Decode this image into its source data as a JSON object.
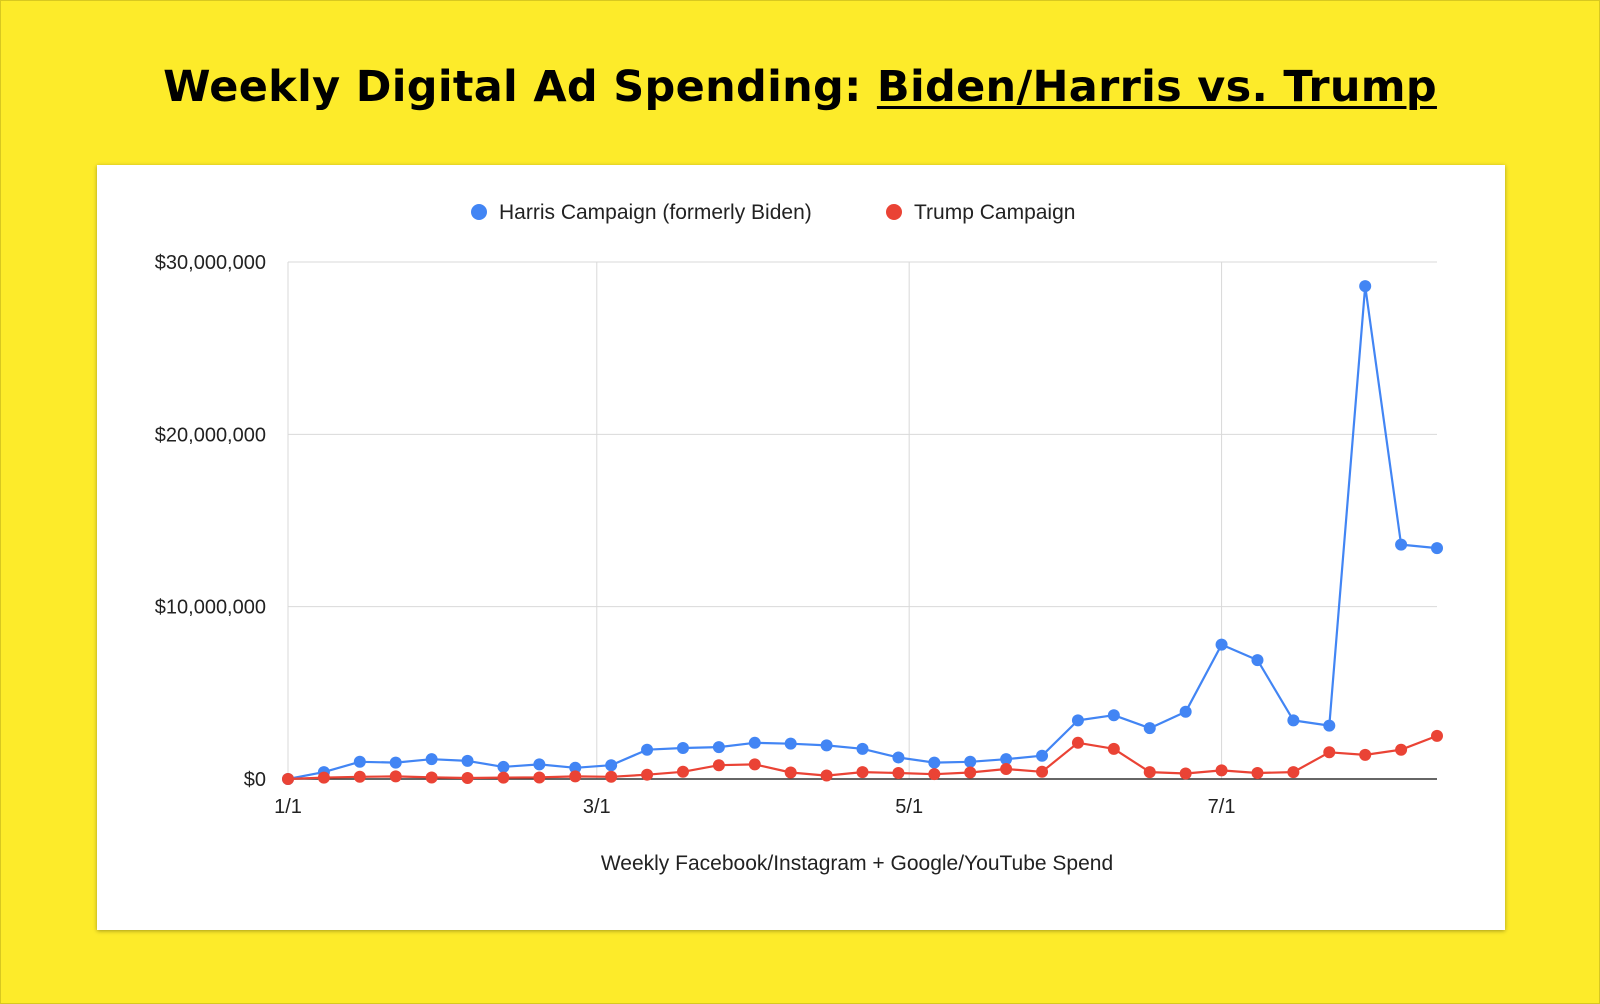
{
  "title": {
    "prefix": "Weekly Digital Ad Spending: ",
    "underlined": "Biden/Harris vs. Trump"
  },
  "colors": {
    "background": "#FDEB2A",
    "harris": "#4285F4",
    "trump": "#EA4335"
  },
  "chart_data": {
    "type": "line",
    "xlabel": "Weekly Facebook/Instagram + Google/YouTube Spend",
    "ylabel": "",
    "ylim": [
      0,
      30000000
    ],
    "y_ticks": [
      {
        "value": 0,
        "label": "$0"
      },
      {
        "value": 10000000,
        "label": "$10,000,000"
      },
      {
        "value": 20000000,
        "label": "$20,000,000"
      },
      {
        "value": 30000000,
        "label": "$30,000,000"
      }
    ],
    "x_ticks": [
      {
        "week": 0,
        "label": "1/1"
      },
      {
        "week": 8.6,
        "label": "3/1"
      },
      {
        "week": 17.3,
        "label": "5/1"
      },
      {
        "week": 26,
        "label": "7/1"
      }
    ],
    "grid": true,
    "legend": "top",
    "series": [
      {
        "name": "Harris Campaign (formerly Biden)",
        "color": "#4285F4",
        "values": [
          0,
          400000,
          1000000,
          950000,
          1150000,
          1050000,
          700000,
          850000,
          650000,
          800000,
          1700000,
          1800000,
          1850000,
          2100000,
          2050000,
          1950000,
          1750000,
          1250000,
          950000,
          1000000,
          1150000,
          1350000,
          3400000,
          3700000,
          2950000,
          3900000,
          7800000,
          6900000,
          3400000,
          3100000,
          28600000,
          13600000,
          13400000
        ]
      },
      {
        "name": "Trump Campaign",
        "color": "#EA4335",
        "values": [
          0,
          80000,
          130000,
          150000,
          90000,
          60000,
          80000,
          90000,
          150000,
          130000,
          250000,
          420000,
          800000,
          850000,
          380000,
          200000,
          400000,
          350000,
          280000,
          380000,
          580000,
          420000,
          2100000,
          1750000,
          400000,
          320000,
          500000,
          350000,
          400000,
          1550000,
          1400000,
          1700000,
          2500000
        ]
      }
    ]
  }
}
